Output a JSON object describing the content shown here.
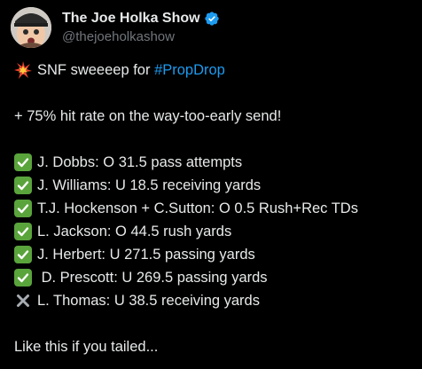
{
  "author": {
    "display_name": "The Joe Holka Show",
    "handle": "@thejoeholkashow",
    "verified_color": "#1d9bf0"
  },
  "post": {
    "intro_emoji": "collision-emoji",
    "intro_prefix": "SNF sweeeep for ",
    "hashtag": "#PropDrop",
    "hit_rate_line": "+ 75% hit rate on the way-too-early send!",
    "picks": [
      {
        "status": "hit",
        "icon": "check-mark-emoji",
        "text": "J. Dobbs: O 31.5 pass attempts"
      },
      {
        "status": "hit",
        "icon": "check-mark-emoji",
        "text": "J. Williams: U 18.5 receiving yards"
      },
      {
        "status": "hit",
        "icon": "check-mark-emoji",
        "text": "T.J. Hockenson + C.Sutton: O 0.5 Rush+Rec TDs"
      },
      {
        "status": "hit",
        "icon": "check-mark-emoji",
        "text": "L. Jackson: O 44.5 rush yards"
      },
      {
        "status": "hit",
        "icon": "check-mark-emoji",
        "text": "J. Herbert: U 271.5 passing yards"
      },
      {
        "status": "hit",
        "icon": "check-mark-emoji",
        "text": " D. Prescott: U 269.5 passing yards"
      },
      {
        "status": "miss",
        "icon": "cross-mark-emoji",
        "text": "L. Thomas: U 38.5 receiving yards"
      }
    ],
    "closing_line": "Like this if you tailed..."
  },
  "colors": {
    "background": "#000000",
    "text": "#e7e9ea",
    "muted": "#71767b",
    "link": "#1d9bf0",
    "check": "#5aa43c"
  }
}
